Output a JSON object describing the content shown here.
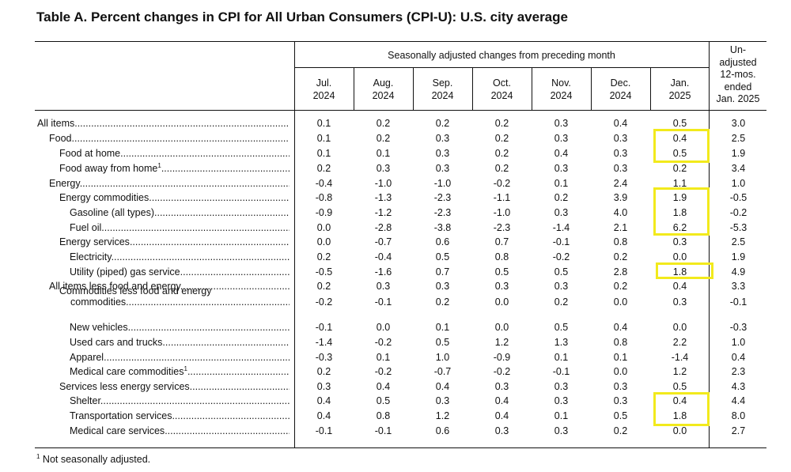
{
  "title": "Table A. Percent changes in CPI for All Urban Consumers (CPI-U): U.S. city average",
  "header": {
    "group_label": "Seasonally adjusted changes from preceding month",
    "months": [
      {
        "line1": "Jul.",
        "line2": "2024"
      },
      {
        "line1": "Aug.",
        "line2": "2024"
      },
      {
        "line1": "Sep.",
        "line2": "2024"
      },
      {
        "line1": "Oct.",
        "line2": "2024"
      },
      {
        "line1": "Nov.",
        "line2": "2024"
      },
      {
        "line1": "Dec.",
        "line2": "2024"
      },
      {
        "line1": "Jan.",
        "line2": "2025"
      }
    ],
    "unadjusted_lines": [
      "Un-",
      "adjusted",
      "12-mos.",
      "ended",
      "Jan. 2025"
    ]
  },
  "rows": [
    {
      "label": "All items",
      "indent": 0,
      "values": [
        "0.1",
        "0.2",
        "0.2",
        "0.2",
        "0.3",
        "0.4",
        "0.5",
        "3.0"
      ]
    },
    {
      "label": "Food",
      "indent": 1,
      "values": [
        "0.1",
        "0.2",
        "0.3",
        "0.2",
        "0.3",
        "0.3",
        "0.4",
        "2.5"
      ]
    },
    {
      "label": "Food at home",
      "indent": 2,
      "values": [
        "0.1",
        "0.1",
        "0.3",
        "0.2",
        "0.4",
        "0.3",
        "0.5",
        "1.9"
      ]
    },
    {
      "label": "Food away from home",
      "footnote": "1",
      "indent": 2,
      "values": [
        "0.2",
        "0.3",
        "0.3",
        "0.2",
        "0.3",
        "0.3",
        "0.2",
        "3.4"
      ]
    },
    {
      "label": "Energy",
      "indent": 1,
      "values": [
        "-0.4",
        "-1.0",
        "-1.0",
        "-0.2",
        "0.1",
        "2.4",
        "1.1",
        "1.0"
      ]
    },
    {
      "label": "Energy commodities",
      "indent": 2,
      "values": [
        "-0.8",
        "-1.3",
        "-2.3",
        "-1.1",
        "0.2",
        "3.9",
        "1.9",
        "-0.5"
      ]
    },
    {
      "label": "Gasoline (all types)",
      "indent": 3,
      "values": [
        "-0.9",
        "-1.2",
        "-2.3",
        "-1.0",
        "0.3",
        "4.0",
        "1.8",
        "-0.2"
      ]
    },
    {
      "label": "Fuel oil",
      "indent": 3,
      "values": [
        "0.0",
        "-2.8",
        "-3.8",
        "-2.3",
        "-1.4",
        "2.1",
        "6.2",
        "-5.3"
      ]
    },
    {
      "label": "Energy services",
      "indent": 2,
      "values": [
        "0.0",
        "-0.7",
        "0.6",
        "0.7",
        "-0.1",
        "0.8",
        "0.3",
        "2.5"
      ]
    },
    {
      "label": "Electricity",
      "indent": 3,
      "values": [
        "0.2",
        "-0.4",
        "0.5",
        "0.8",
        "-0.2",
        "0.2",
        "0.0",
        "1.9"
      ]
    },
    {
      "label": "Utility (piped) gas service",
      "indent": 3,
      "values": [
        "-0.5",
        "-1.6",
        "0.7",
        "0.5",
        "0.5",
        "2.8",
        "1.8",
        "4.9"
      ]
    },
    {
      "label": "All items less food and energy",
      "indent": 1,
      "values": [
        "0.2",
        "0.3",
        "0.3",
        "0.3",
        "0.3",
        "0.2",
        "0.4",
        "3.3"
      ]
    },
    {
      "label": "Commodities less food and energy",
      "label2": "commodities",
      "indent": 2,
      "values": [
        "-0.2",
        "-0.1",
        "0.2",
        "0.0",
        "0.2",
        "0.0",
        "0.3",
        "-0.1"
      ]
    },
    {
      "label": "New vehicles",
      "indent": 3,
      "values": [
        "-0.1",
        "0.0",
        "0.1",
        "0.0",
        "0.5",
        "0.4",
        "0.0",
        "-0.3"
      ]
    },
    {
      "label": "Used cars and trucks",
      "indent": 3,
      "values": [
        "-1.4",
        "-0.2",
        "0.5",
        "1.2",
        "1.3",
        "0.8",
        "2.2",
        "1.0"
      ]
    },
    {
      "label": "Apparel",
      "indent": 3,
      "values": [
        "-0.3",
        "0.1",
        "1.0",
        "-0.9",
        "0.1",
        "0.1",
        "-1.4",
        "0.4"
      ]
    },
    {
      "label": "Medical care commodities",
      "footnote": "1",
      "indent": 3,
      "values": [
        "0.2",
        "-0.2",
        "-0.7",
        "-0.2",
        "-0.1",
        "0.0",
        "1.2",
        "2.3"
      ]
    },
    {
      "label": "Services less energy services",
      "indent": 2,
      "values": [
        "0.3",
        "0.4",
        "0.4",
        "0.3",
        "0.3",
        "0.3",
        "0.5",
        "4.3"
      ]
    },
    {
      "label": "Shelter",
      "indent": 3,
      "values": [
        "0.4",
        "0.5",
        "0.3",
        "0.4",
        "0.3",
        "0.3",
        "0.4",
        "4.4"
      ]
    },
    {
      "label": "Transportation services",
      "indent": 3,
      "values": [
        "0.4",
        "0.8",
        "1.2",
        "0.4",
        "0.1",
        "0.5",
        "1.8",
        "8.0"
      ]
    },
    {
      "label": "Medical care services",
      "indent": 3,
      "values": [
        "-0.1",
        "-0.1",
        "0.6",
        "0.3",
        "0.3",
        "0.2",
        "0.0",
        "2.7"
      ]
    }
  ],
  "footnote": {
    "mark": "1",
    "text": " Not seasonally adjusted."
  },
  "highlight_color": "#f2ea1c"
}
